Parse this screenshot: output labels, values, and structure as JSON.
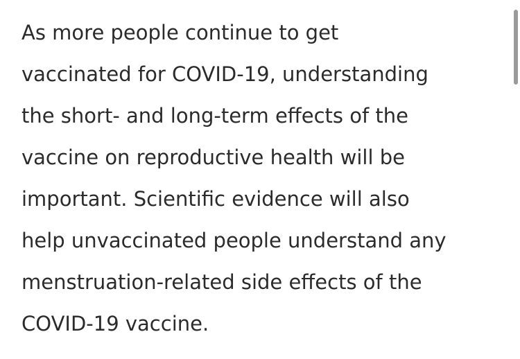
{
  "article": {
    "lines": [
      "As more people continue to get",
      "vaccinated for COVID-19, understanding",
      "the short- and long-term effects of the",
      "vaccine on reproductive health will be",
      "important. Scientific evidence will also",
      "help unvaccinated people understand any",
      "menstruation-related side effects of the",
      "COVID-19 vaccine."
    ]
  },
  "colors": {
    "text": "#2b2b2b",
    "background": "#ffffff",
    "scrollbar_thumb": "#9a9a9a"
  }
}
